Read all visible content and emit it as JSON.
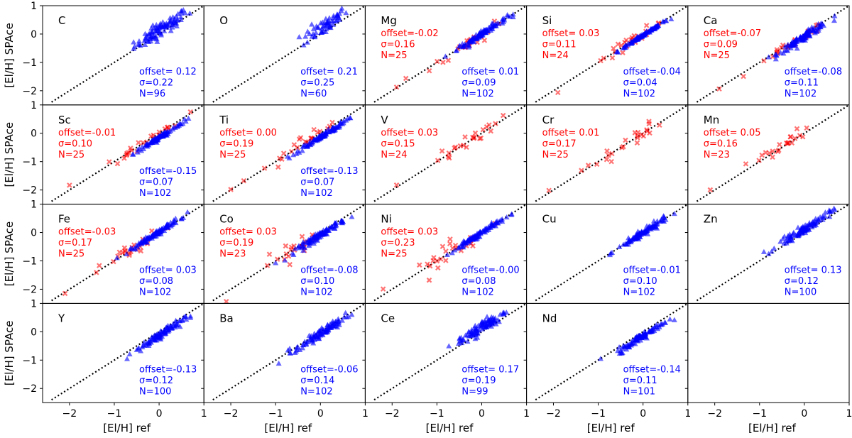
{
  "chart_data": {
    "type": "scatter",
    "title": "",
    "xlabel": "[El/H] ref",
    "ylabel": "[El/H] SPAce",
    "xlim": [
      -2.6,
      1.0
    ],
    "ylim": [
      -2.5,
      1.0
    ],
    "xticks": [
      -2,
      -1,
      0,
      1
    ],
    "yticks": [
      -2,
      -1,
      0,
      1
    ],
    "xtick_labels": [
      "−2",
      "−1",
      "0",
      "1"
    ],
    "ytick_labels": [
      "−2",
      "−1",
      "0",
      "1"
    ],
    "grid": false,
    "one_to_one_line": true,
    "colors": {
      "blue": "#0000ff",
      "red": "#ff0000",
      "line": "#000000"
    },
    "series_names": {
      "blue": "blue triangles",
      "red": "red crosses"
    },
    "panels": [
      {
        "element": "C",
        "blue": {
          "offset": "offset= 0.12",
          "sigma": "σ=0.22",
          "n": "N=96",
          "xc": 0.05,
          "xs": 0.3,
          "yoff": 0.12,
          "ys": 0.22,
          "count": 96
        },
        "red": null
      },
      {
        "element": "O",
        "blue": {
          "offset": "offset= 0.21",
          "sigma": "σ=0.25",
          "n": "N=60",
          "xc": 0.1,
          "xs": 0.25,
          "yoff": 0.21,
          "ys": 0.25,
          "count": 60
        },
        "red": null
      },
      {
        "element": "Mg",
        "blue": {
          "offset": "offset= 0.01",
          "sigma": "σ=0.09",
          "n": "N=102",
          "xc": 0.0,
          "xs": 0.28,
          "yoff": 0.01,
          "ys": 0.09,
          "count": 102
        },
        "red": {
          "offset": "offset=-0.02",
          "sigma": "σ=0.16",
          "n": "N=25",
          "xc": -0.3,
          "xs": 0.4,
          "yoff": -0.02,
          "ys": 0.16,
          "count": 25
        }
      },
      {
        "element": "Si",
        "blue": {
          "offset": "offset=-0.04",
          "sigma": "σ=0.04",
          "n": "N=102",
          "xc": 0.0,
          "xs": 0.28,
          "yoff": -0.04,
          "ys": 0.04,
          "count": 102
        },
        "red": {
          "offset": "offset= 0.03",
          "sigma": "σ=0.11",
          "n": "N=24",
          "xc": -0.3,
          "xs": 0.4,
          "yoff": 0.03,
          "ys": 0.11,
          "count": 24
        }
      },
      {
        "element": "Ca",
        "blue": {
          "offset": "offset=-0.08",
          "sigma": "σ=0.11",
          "n": "N=102",
          "xc": 0.0,
          "xs": 0.28,
          "yoff": -0.08,
          "ys": 0.11,
          "count": 102
        },
        "red": {
          "offset": "offset=-0.07",
          "sigma": "σ=0.09",
          "n": "N=25",
          "xc": -0.3,
          "xs": 0.4,
          "yoff": -0.07,
          "ys": 0.09,
          "count": 25
        }
      },
      {
        "element": "Sc",
        "blue": {
          "offset": "offset=-0.15",
          "sigma": "σ=0.07",
          "n": "N=102",
          "xc": 0.0,
          "xs": 0.28,
          "yoff": -0.15,
          "ys": 0.07,
          "count": 102
        },
        "red": {
          "offset": "offset=-0.01",
          "sigma": "σ=0.10",
          "n": "N=25",
          "xc": -0.4,
          "xs": 0.45,
          "yoff": -0.01,
          "ys": 0.1,
          "count": 25
        }
      },
      {
        "element": "Ti",
        "blue": {
          "offset": "offset=-0.13",
          "sigma": "σ=0.07",
          "n": "N=102",
          "xc": 0.0,
          "xs": 0.28,
          "yoff": -0.13,
          "ys": 0.07,
          "count": 102
        },
        "red": {
          "offset": "offset= 0.00",
          "sigma": "σ=0.19",
          "n": "N=25",
          "xc": -0.4,
          "xs": 0.45,
          "yoff": 0.0,
          "ys": 0.19,
          "count": 25
        }
      },
      {
        "element": "V",
        "blue": null,
        "red": {
          "offset": "offset= 0.03",
          "sigma": "σ=0.15",
          "n": "N=24",
          "xc": -0.3,
          "xs": 0.35,
          "yoff": 0.03,
          "ys": 0.15,
          "count": 24
        }
      },
      {
        "element": "Cr",
        "blue": null,
        "red": {
          "offset": "offset= 0.01",
          "sigma": "σ=0.17",
          "n": "N=25",
          "xc": -0.5,
          "xs": 0.45,
          "yoff": 0.01,
          "ys": 0.17,
          "count": 25
        }
      },
      {
        "element": "Mn",
        "blue": null,
        "red": {
          "offset": "offset= 0.05",
          "sigma": "σ=0.16",
          "n": "N=23",
          "xc": -0.5,
          "xs": 0.4,
          "yoff": 0.05,
          "ys": 0.16,
          "count": 23
        }
      },
      {
        "element": "Fe",
        "blue": {
          "offset": "offset= 0.03",
          "sigma": "σ=0.08",
          "n": "N=102",
          "xc": -0.1,
          "xs": 0.28,
          "yoff": 0.03,
          "ys": 0.08,
          "count": 102
        },
        "red": {
          "offset": "offset=-0.03",
          "sigma": "σ=0.17",
          "n": "N=25",
          "xc": -0.5,
          "xs": 0.4,
          "yoff": -0.03,
          "ys": 0.17,
          "count": 25
        }
      },
      {
        "element": "Co",
        "blue": {
          "offset": "offset=-0.08",
          "sigma": "σ=0.10",
          "n": "N=102",
          "xc": 0.0,
          "xs": 0.28,
          "yoff": -0.08,
          "ys": 0.1,
          "count": 102
        },
        "red": {
          "offset": "offset= 0.03",
          "sigma": "σ=0.19",
          "n": "N=23",
          "xc": -0.5,
          "xs": 0.4,
          "yoff": 0.03,
          "ys": 0.19,
          "count": 23
        }
      },
      {
        "element": "Ni",
        "blue": {
          "offset": "offset=-0.00",
          "sigma": "σ=0.08",
          "n": "N=102",
          "xc": -0.1,
          "xs": 0.28,
          "yoff": 0.0,
          "ys": 0.08,
          "count": 102
        },
        "red": {
          "offset": "offset= 0.03",
          "sigma": "σ=0.23",
          "n": "N=25",
          "xc": -0.6,
          "xs": 0.45,
          "yoff": 0.03,
          "ys": 0.23,
          "count": 25
        }
      },
      {
        "element": "Cu",
        "blue": {
          "offset": "offset=-0.01",
          "sigma": "σ=0.10",
          "n": "N=102",
          "xc": 0.0,
          "xs": 0.28,
          "yoff": -0.01,
          "ys": 0.1,
          "count": 102
        },
        "red": null
      },
      {
        "element": "Zn",
        "blue": {
          "offset": "offset= 0.13",
          "sigma": "σ=0.12",
          "n": "N=100",
          "xc": 0.0,
          "xs": 0.3,
          "yoff": 0.13,
          "ys": 0.12,
          "count": 100
        },
        "red": null
      },
      {
        "element": "Y",
        "blue": {
          "offset": "offset=-0.13",
          "sigma": "σ=0.12",
          "n": "N=100",
          "xc": 0.0,
          "xs": 0.28,
          "yoff": -0.13,
          "ys": 0.12,
          "count": 100
        },
        "red": null
      },
      {
        "element": "Ba",
        "blue": {
          "offset": "offset=-0.06",
          "sigma": "σ=0.14",
          "n": "N=102",
          "xc": 0.0,
          "xs": 0.28,
          "yoff": -0.06,
          "ys": 0.14,
          "count": 102
        },
        "red": null
      },
      {
        "element": "Ce",
        "blue": {
          "offset": "offset= 0.17",
          "sigma": "σ=0.19",
          "n": "N=99",
          "xc": 0.0,
          "xs": 0.28,
          "yoff": 0.17,
          "ys": 0.19,
          "count": 99
        },
        "red": null
      },
      {
        "element": "Nd",
        "blue": {
          "offset": "offset=-0.14",
          "sigma": "σ=0.11",
          "n": "N=101",
          "xc": 0.0,
          "xs": 0.28,
          "yoff": -0.14,
          "ys": 0.11,
          "count": 101
        },
        "red": null
      },
      {
        "element": "",
        "blue": null,
        "red": null
      }
    ]
  }
}
